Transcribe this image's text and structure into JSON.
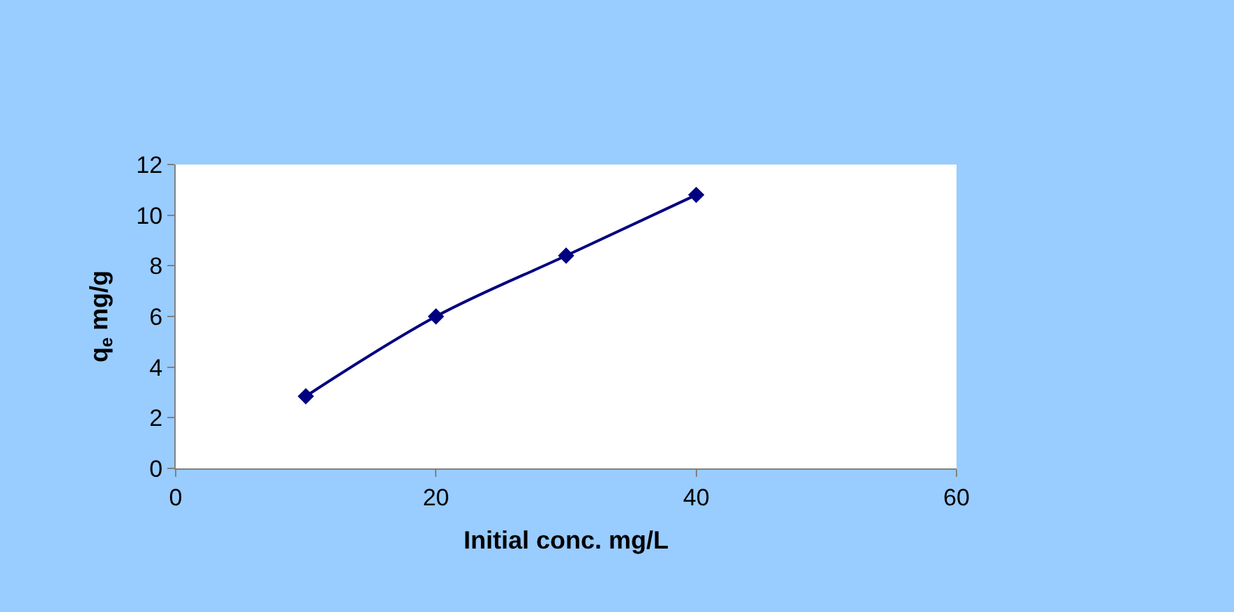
{
  "chart_data": {
    "type": "line",
    "xlabel": "Initial conc. mg/L",
    "ylabel": "q$_{e}$ mg/g",
    "x": [
      10,
      20,
      30,
      40
    ],
    "series": [
      {
        "color": "#000080",
        "values": [
          2.85,
          6.0,
          8.4,
          10.8
        ]
      }
    ],
    "xlim": [
      0,
      60
    ],
    "xticks": [
      0,
      20,
      40,
      60
    ],
    "ylim": [
      0,
      12
    ],
    "yticks": [
      0,
      2,
      4,
      6,
      8,
      10,
      12
    ],
    "marker": "diamond",
    "line_style": "solid"
  }
}
